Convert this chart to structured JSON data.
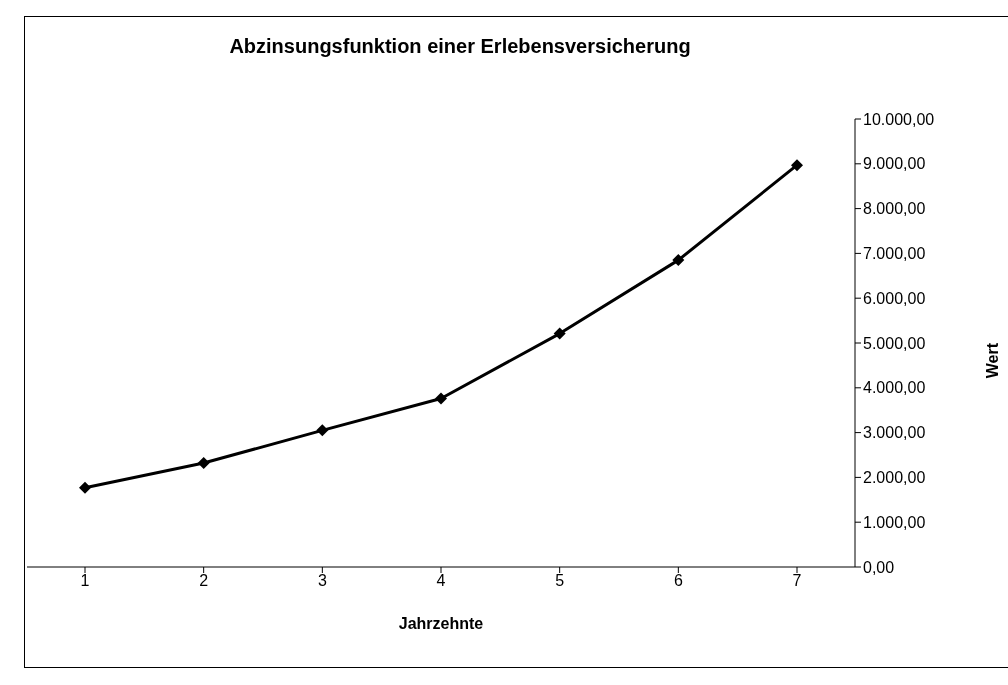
{
  "chart_data": {
    "type": "line",
    "title": "Abzinsungsfunktion einer Erlebensversicherung",
    "xlabel": "Jahrzehnte",
    "ylabel": "Wert",
    "categories": [
      "1",
      "2",
      "3",
      "4",
      "5",
      "6",
      "7"
    ],
    "series": [
      {
        "color": "#000000",
        "values": [
          1770,
          2320,
          3050,
          3760,
          5210,
          6850,
          8970
        ]
      }
    ],
    "ylim": [
      0,
      10000
    ],
    "yticks": [
      {
        "value": 0,
        "label": "0,00"
      },
      {
        "value": 1000,
        "label": "1.000,00"
      },
      {
        "value": 2000,
        "label": "2.000,00"
      },
      {
        "value": 3000,
        "label": "3.000,00"
      },
      {
        "value": 4000,
        "label": "4.000,00"
      },
      {
        "value": 5000,
        "label": "5.000,00"
      },
      {
        "value": 6000,
        "label": "6.000,00"
      },
      {
        "value": 7000,
        "label": "7.000,00"
      },
      {
        "value": 8000,
        "label": "8.000,00"
      },
      {
        "value": 9000,
        "label": "9.000,00"
      },
      {
        "value": 10000,
        "label": "10.000,00"
      }
    ],
    "grid": false,
    "legend": false,
    "marker": "diamond",
    "line_style": "solid"
  }
}
